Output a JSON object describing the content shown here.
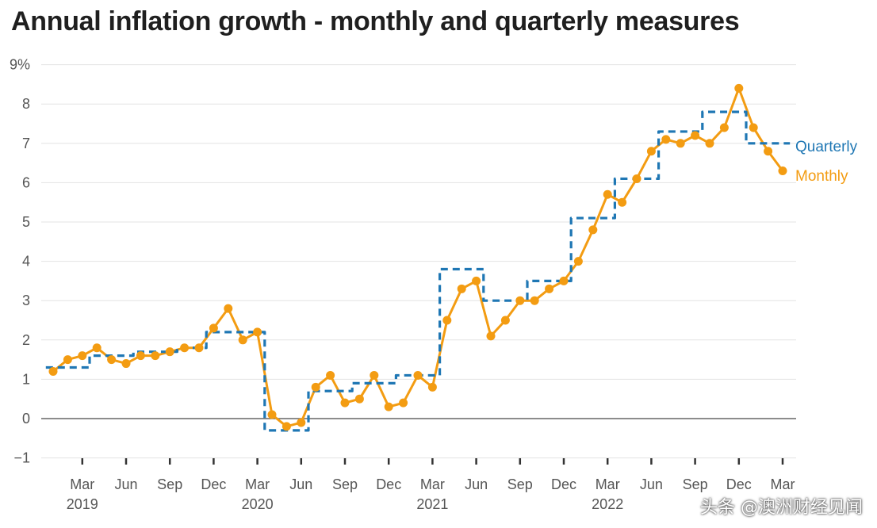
{
  "chart_data": {
    "type": "line",
    "title": "Annual inflation growth - monthly and quarterly measures",
    "ylim": [
      -1,
      9
    ],
    "yticks": [
      -1,
      0,
      1,
      2,
      3,
      4,
      5,
      6,
      7,
      8,
      9
    ],
    "ytick_labels": [
      "−1",
      "0",
      "1",
      "2",
      "3",
      "4",
      "5",
      "6",
      "7",
      "8",
      "9%"
    ],
    "x_start": "2019-01",
    "x_ticks": [
      {
        "index": 2,
        "label": "Mar",
        "year": "2019"
      },
      {
        "index": 5,
        "label": "Jun",
        "year": ""
      },
      {
        "index": 8,
        "label": "Sep",
        "year": ""
      },
      {
        "index": 11,
        "label": "Dec",
        "year": ""
      },
      {
        "index": 14,
        "label": "Mar",
        "year": "2020"
      },
      {
        "index": 17,
        "label": "Jun",
        "year": ""
      },
      {
        "index": 20,
        "label": "Sep",
        "year": ""
      },
      {
        "index": 23,
        "label": "Dec",
        "year": ""
      },
      {
        "index": 26,
        "label": "Mar",
        "year": "2021"
      },
      {
        "index": 29,
        "label": "Jun",
        "year": ""
      },
      {
        "index": 32,
        "label": "Sep",
        "year": ""
      },
      {
        "index": 35,
        "label": "Dec",
        "year": ""
      },
      {
        "index": 38,
        "label": "Mar",
        "year": "2022"
      },
      {
        "index": 41,
        "label": "Jun",
        "year": ""
      },
      {
        "index": 44,
        "label": "Sep",
        "year": ""
      },
      {
        "index": 47,
        "label": "Dec",
        "year": ""
      },
      {
        "index": 50,
        "label": "Mar",
        "year": ""
      }
    ],
    "series": [
      {
        "name": "Monthly",
        "color": "#f39c12",
        "style": "solid-markers",
        "values": [
          1.2,
          1.5,
          1.6,
          1.8,
          1.5,
          1.4,
          1.6,
          1.6,
          1.7,
          1.8,
          1.8,
          2.3,
          2.8,
          2.0,
          2.2,
          0.1,
          -0.2,
          -0.1,
          0.8,
          1.1,
          0.4,
          0.5,
          1.1,
          0.3,
          0.4,
          1.1,
          0.8,
          2.5,
          3.3,
          3.5,
          2.1,
          2.5,
          3.0,
          3.0,
          3.3,
          3.5,
          4.0,
          4.8,
          5.7,
          5.5,
          6.1,
          6.8,
          7.1,
          7.0,
          7.2,
          7.0,
          7.4,
          8.4,
          7.4,
          6.8,
          6.3
        ]
      },
      {
        "name": "Quarterly",
        "color": "#1f77b4",
        "style": "dashed-step",
        "values": [
          1.3,
          1.3,
          1.3,
          1.6,
          1.6,
          1.6,
          1.7,
          1.7,
          1.7,
          1.8,
          1.8,
          2.2,
          2.2,
          2.2,
          2.2,
          -0.3,
          -0.3,
          -0.3,
          0.7,
          0.7,
          0.7,
          0.9,
          0.9,
          0.9,
          1.1,
          1.1,
          1.1,
          3.8,
          3.8,
          3.8,
          3.0,
          3.0,
          3.0,
          3.5,
          3.5,
          3.5,
          5.1,
          5.1,
          5.1,
          6.1,
          6.1,
          6.1,
          7.3,
          7.3,
          7.3,
          7.8,
          7.8,
          7.8,
          7.0,
          7.0,
          7.0
        ]
      }
    ],
    "legend_placement": "right, next to line ends"
  },
  "watermark": "头条 @澳洲财经见闻"
}
